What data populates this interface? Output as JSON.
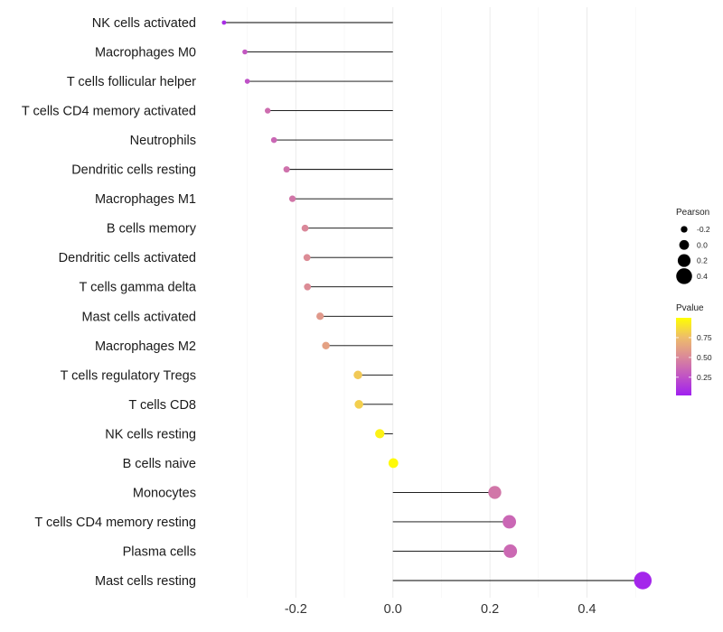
{
  "chart_data": {
    "type": "lollipop",
    "title": "",
    "xlabel": "",
    "ylabel": "",
    "xlim": [
      -0.385,
      0.535
    ],
    "x_ticks": [
      -0.2,
      0.0,
      0.2,
      0.4
    ],
    "x_tick_labels": [
      "-0.2",
      "0.0",
      "0.2",
      "0.4"
    ],
    "grid": true,
    "categories": [
      "NK cells activated",
      "Macrophages M0",
      "T cells follicular helper",
      "T cells CD4 memory activated",
      "Neutrophils",
      "Dendritic cells resting",
      "Macrophages M1",
      "B cells memory",
      "Dendritic cells activated",
      "T cells gamma delta",
      "Mast cells activated",
      "Macrophages M2",
      "T cells regulatory  Tregs ",
      "T cells CD8",
      "NK cells resting",
      "B cells naive",
      "Monocytes",
      "T cells CD4 memory resting",
      "Plasma cells",
      "Mast cells resting"
    ],
    "pearson": [
      -0.348,
      -0.305,
      -0.3,
      -0.258,
      -0.245,
      -0.219,
      -0.207,
      -0.181,
      -0.177,
      -0.176,
      -0.15,
      -0.138,
      -0.072,
      -0.07,
      -0.027,
      0.001,
      0.21,
      0.24,
      0.242,
      0.515
    ],
    "pvalue": [
      0.08,
      0.28,
      0.25,
      0.38,
      0.35,
      0.4,
      0.42,
      0.5,
      0.52,
      0.52,
      0.58,
      0.62,
      0.8,
      0.82,
      0.95,
      0.98,
      0.42,
      0.35,
      0.36,
      0.05
    ],
    "legend_size": {
      "title": "Pearson",
      "values": [
        -0.2,
        0.0,
        0.2,
        0.4
      ],
      "labels": [
        "-0.2",
        "0.0",
        "0.2",
        "0.4"
      ]
    },
    "legend_color": {
      "title": "Pvalue",
      "ticks": [
        0.25,
        0.5,
        0.75
      ],
      "tick_labels": [
        "0.25",
        "0.50",
        "0.75"
      ],
      "range": [
        0.02,
        1.0
      ],
      "low_color": "#a020f0",
      "high_color": "#ffff00"
    },
    "segment_color": "#000000",
    "legend_position": "right"
  }
}
